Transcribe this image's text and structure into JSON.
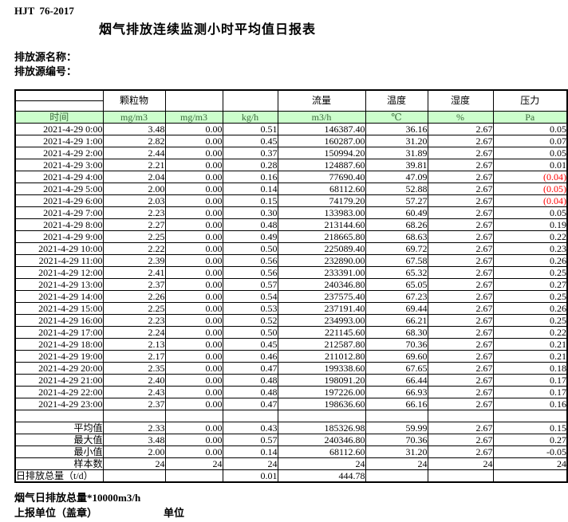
{
  "doc": {
    "standard": "HJT  76-2017",
    "title": "烟气排放连续监测小时平均值日报表",
    "source_name_label": "排放源名称：",
    "source_id_label": "排放源编号："
  },
  "table": {
    "group_headers": [
      "",
      "颗粒物",
      "",
      "",
      "流量",
      "温度",
      "湿度",
      "压力"
    ],
    "unit_headers": [
      "时间",
      "mg/m3",
      "mg/m3",
      "kg/h",
      "m3/h",
      "℃",
      "%",
      "Pa"
    ],
    "rows": [
      [
        "2021-4-29 0:00",
        "3.48",
        "0.00",
        "0.51",
        "146387.40",
        "36.16",
        "2.67",
        "0.05"
      ],
      [
        "2021-4-29 1:00",
        "2.82",
        "0.00",
        "0.45",
        "160287.00",
        "31.20",
        "2.67",
        "0.07"
      ],
      [
        "2021-4-29 2:00",
        "2.44",
        "0.00",
        "0.37",
        "150994.20",
        "31.89",
        "2.67",
        "0.05"
      ],
      [
        "2021-4-29 3:00",
        "2.21",
        "0.00",
        "0.28",
        "124887.60",
        "39.81",
        "2.67",
        "0.01"
      ],
      [
        "2021-4-29 4:00",
        "2.04",
        "0.00",
        "0.16",
        "77690.40",
        "47.09",
        "2.67",
        "(0.04)"
      ],
      [
        "2021-4-29 5:00",
        "2.00",
        "0.00",
        "0.14",
        "68112.60",
        "52.88",
        "2.67",
        "(0.05)"
      ],
      [
        "2021-4-29 6:00",
        "2.03",
        "0.00",
        "0.15",
        "74179.20",
        "57.27",
        "2.67",
        "(0.04)"
      ],
      [
        "2021-4-29 7:00",
        "2.23",
        "0.00",
        "0.30",
        "133983.00",
        "60.49",
        "2.67",
        "0.05"
      ],
      [
        "2021-4-29 8:00",
        "2.27",
        "0.00",
        "0.48",
        "213144.60",
        "68.26",
        "2.67",
        "0.19"
      ],
      [
        "2021-4-29 9:00",
        "2.25",
        "0.00",
        "0.49",
        "218665.80",
        "68.63",
        "2.67",
        "0.22"
      ],
      [
        "2021-4-29 10:00",
        "2.22",
        "0.00",
        "0.50",
        "225089.40",
        "69.72",
        "2.67",
        "0.23"
      ],
      [
        "2021-4-29 11:00",
        "2.39",
        "0.00",
        "0.56",
        "232890.00",
        "67.58",
        "2.67",
        "0.26"
      ],
      [
        "2021-4-29 12:00",
        "2.41",
        "0.00",
        "0.56",
        "233391.00",
        "65.32",
        "2.67",
        "0.25"
      ],
      [
        "2021-4-29 13:00",
        "2.37",
        "0.00",
        "0.57",
        "240346.80",
        "65.05",
        "2.67",
        "0.27"
      ],
      [
        "2021-4-29 14:00",
        "2.26",
        "0.00",
        "0.54",
        "237575.40",
        "67.23",
        "2.67",
        "0.25"
      ],
      [
        "2021-4-29 15:00",
        "2.25",
        "0.00",
        "0.53",
        "237191.40",
        "69.44",
        "2.67",
        "0.26"
      ],
      [
        "2021-4-29 16:00",
        "2.23",
        "0.00",
        "0.52",
        "234993.00",
        "66.21",
        "2.67",
        "0.25"
      ],
      [
        "2021-4-29 17:00",
        "2.24",
        "0.00",
        "0.50",
        "221145.60",
        "68.30",
        "2.67",
        "0.22"
      ],
      [
        "2021-4-29 18:00",
        "2.13",
        "0.00",
        "0.45",
        "212587.80",
        "70.36",
        "2.67",
        "0.21"
      ],
      [
        "2021-4-29 19:00",
        "2.17",
        "0.00",
        "0.46",
        "211012.80",
        "69.60",
        "2.67",
        "0.21"
      ],
      [
        "2021-4-29 20:00",
        "2.35",
        "0.00",
        "0.47",
        "199338.60",
        "67.65",
        "2.67",
        "0.18"
      ],
      [
        "2021-4-29 21:00",
        "2.40",
        "0.00",
        "0.48",
        "198091.20",
        "66.44",
        "2.67",
        "0.17"
      ],
      [
        "2021-4-29 22:00",
        "2.43",
        "0.00",
        "0.48",
        "197226.00",
        "66.93",
        "2.67",
        "0.17"
      ],
      [
        "2021-4-29 23:00",
        "2.37",
        "0.00",
        "0.47",
        "198636.60",
        "66.16",
        "2.67",
        "0.16"
      ]
    ],
    "summary_rows": [
      [
        "平均值",
        "2.33",
        "0.00",
        "0.43",
        "185326.98",
        "59.99",
        "2.67",
        "0.15"
      ],
      [
        "最大值",
        "3.48",
        "0.00",
        "0.57",
        "240346.80",
        "70.36",
        "2.67",
        "0.27"
      ],
      [
        "最小值",
        "2.00",
        "0.00",
        "0.14",
        "68112.60",
        "31.20",
        "2.67",
        "-0.05"
      ],
      [
        "样本数",
        "24",
        "24",
        "24",
        "24",
        "24",
        "24",
        "24"
      ],
      [
        "日排放总量（t/d）",
        "",
        "",
        "0.01",
        "444.78",
        "",
        "",
        ""
      ]
    ]
  },
  "footer": {
    "note": "烟气日排放总量*10000m3/h",
    "report_unit_label": "上报单位（盖章）",
    "unit_label": "单位"
  },
  "colors": {
    "header_bg": "#ccffcc",
    "header_text": "#3d6b3d",
    "negative": "#ff0000"
  }
}
